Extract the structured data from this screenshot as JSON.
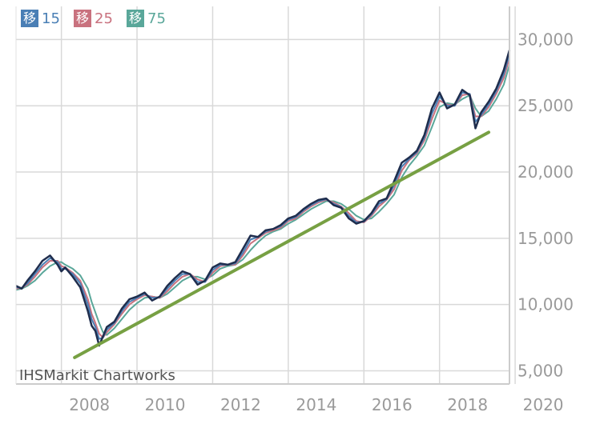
{
  "legend": [
    {
      "badge": "移",
      "value": "15",
      "color": "#4a7fb5"
    },
    {
      "badge": "移",
      "value": "25",
      "color": "#c9727f"
    },
    {
      "badge": "移",
      "value": "75",
      "color": "#5aa79a"
    }
  ],
  "source": "IHSMarkit Chartworks",
  "chart_data": {
    "type": "line",
    "xlim": [
      2006.8,
      2019.85
    ],
    "ylim": [
      4000,
      32500
    ],
    "x_ticks": [
      2008,
      2010,
      2012,
      2014,
      2016,
      2018,
      2020
    ],
    "x_tick_labels": [
      "2008",
      "2010",
      "2012",
      "2014",
      "2016",
      "2018",
      "2020"
    ],
    "y_ticks": [
      5000,
      10000,
      15000,
      20000,
      25000,
      30000
    ],
    "y_tick_labels": [
      "5,000",
      "10,000",
      "15,000",
      "20,000",
      "25,000",
      "30,000"
    ],
    "grid": true,
    "legend_position": "top-left",
    "colors": {
      "price": "#1f2d4d",
      "ma15": "#4a7fb5",
      "ma25": "#c9727f",
      "ma75": "#5aa79a",
      "trend": "#77a043"
    },
    "x": [
      2006.8,
      2006.95,
      2007.1,
      2007.3,
      2007.5,
      2007.7,
      2007.9,
      2008.0,
      2008.1,
      2008.3,
      2008.5,
      2008.7,
      2008.8,
      2008.9,
      2009.0,
      2009.1,
      2009.2,
      2009.4,
      2009.6,
      2009.8,
      2010.0,
      2010.2,
      2010.4,
      2010.6,
      2010.8,
      2011.0,
      2011.2,
      2011.4,
      2011.6,
      2011.8,
      2012.0,
      2012.2,
      2012.4,
      2012.6,
      2012.8,
      2013.0,
      2013.2,
      2013.4,
      2013.6,
      2013.8,
      2014.0,
      2014.2,
      2014.4,
      2014.6,
      2014.8,
      2015.0,
      2015.2,
      2015.4,
      2015.6,
      2015.8,
      2016.0,
      2016.2,
      2016.4,
      2016.6,
      2016.8,
      2017.0,
      2017.2,
      2017.4,
      2017.6,
      2017.8,
      2018.0,
      2018.2,
      2018.4,
      2018.6,
      2018.8,
      2018.95,
      2019.1,
      2019.3,
      2019.5,
      2019.7,
      2019.85
    ],
    "series": [
      {
        "values": [
          11400,
          11200,
          11800,
          12500,
          13300,
          13700,
          13000,
          12500,
          12800,
          12100,
          11300,
          9500,
          8400,
          8000,
          6900,
          7600,
          8300,
          8700,
          9700,
          10400,
          10600,
          10900,
          10300,
          10600,
          11400,
          12000,
          12500,
          12300,
          11500,
          11800,
          12800,
          13100,
          13000,
          13200,
          14200,
          15200,
          15100,
          15600,
          15700,
          16000,
          16500,
          16700,
          17200,
          17600,
          17900,
          18000,
          17500,
          17300,
          16500,
          16100,
          16300,
          16900,
          17800,
          18000,
          19300,
          20700,
          21100,
          21600,
          22800,
          24800,
          26000,
          24800,
          25100,
          26200,
          25800,
          23300,
          24500,
          25300,
          26300,
          27700,
          29200
        ]
      },
      {
        "values": [
          11300,
          11250,
          11600,
          12300,
          13000,
          13500,
          13200,
          12700,
          12700,
          12300,
          11600,
          10000,
          8900,
          8300,
          7400,
          7500,
          8100,
          8600,
          9500,
          10200,
          10500,
          10800,
          10500,
          10550,
          11200,
          11800,
          12300,
          12300,
          11700,
          11700,
          12600,
          13000,
          13000,
          13100,
          13900,
          14900,
          15100,
          15500,
          15700,
          15900,
          16400,
          16600,
          17100,
          17500,
          17800,
          17950,
          17600,
          17350,
          16700,
          16200,
          16250,
          16800,
          17600,
          17950,
          19000,
          20400,
          21000,
          21500,
          22600,
          24400,
          25700,
          25000,
          25000,
          26000,
          25900,
          23800,
          24300,
          25100,
          26100,
          27400,
          28900
        ]
      },
      {
        "values": [
          11200,
          11250,
          11500,
          12100,
          12800,
          13300,
          13300,
          12900,
          12800,
          12400,
          11800,
          10400,
          9300,
          8600,
          7800,
          7500,
          7900,
          8500,
          9300,
          10000,
          10400,
          10700,
          10600,
          10500,
          11000,
          11600,
          12100,
          12300,
          11900,
          11700,
          12400,
          12900,
          13000,
          13000,
          13700,
          14600,
          15000,
          15400,
          15600,
          15800,
          16300,
          16500,
          17000,
          17400,
          17700,
          17900,
          17700,
          17400,
          16900,
          16300,
          16200,
          16700,
          17400,
          17900,
          18700,
          20100,
          20900,
          21400,
          22400,
          24000,
          25400,
          25100,
          25000,
          25800,
          25900,
          24200,
          24200,
          24900,
          25900,
          27100,
          28600
        ]
      },
      {
        "values": [
          11100,
          11200,
          11400,
          11800,
          12400,
          12900,
          13200,
          13200,
          13000,
          12700,
          12200,
          11200,
          10200,
          9400,
          8600,
          7900,
          7700,
          8200,
          8900,
          9600,
          10100,
          10500,
          10600,
          10500,
          10800,
          11300,
          11800,
          12100,
          12100,
          11900,
          12200,
          12700,
          12900,
          13000,
          13400,
          14100,
          14700,
          15200,
          15500,
          15700,
          16100,
          16400,
          16800,
          17200,
          17500,
          17800,
          17800,
          17600,
          17200,
          16700,
          16400,
          16500,
          17000,
          17600,
          18300,
          19600,
          20500,
          21200,
          22000,
          23400,
          24900,
          25200,
          25100,
          25500,
          25800,
          24800,
          24200,
          24600,
          25500,
          26600,
          28100
        ]
      }
    ],
    "trend_line": {
      "x": [
        2008.35,
        2019.3
      ],
      "y": [
        6000,
        23000
      ]
    }
  }
}
